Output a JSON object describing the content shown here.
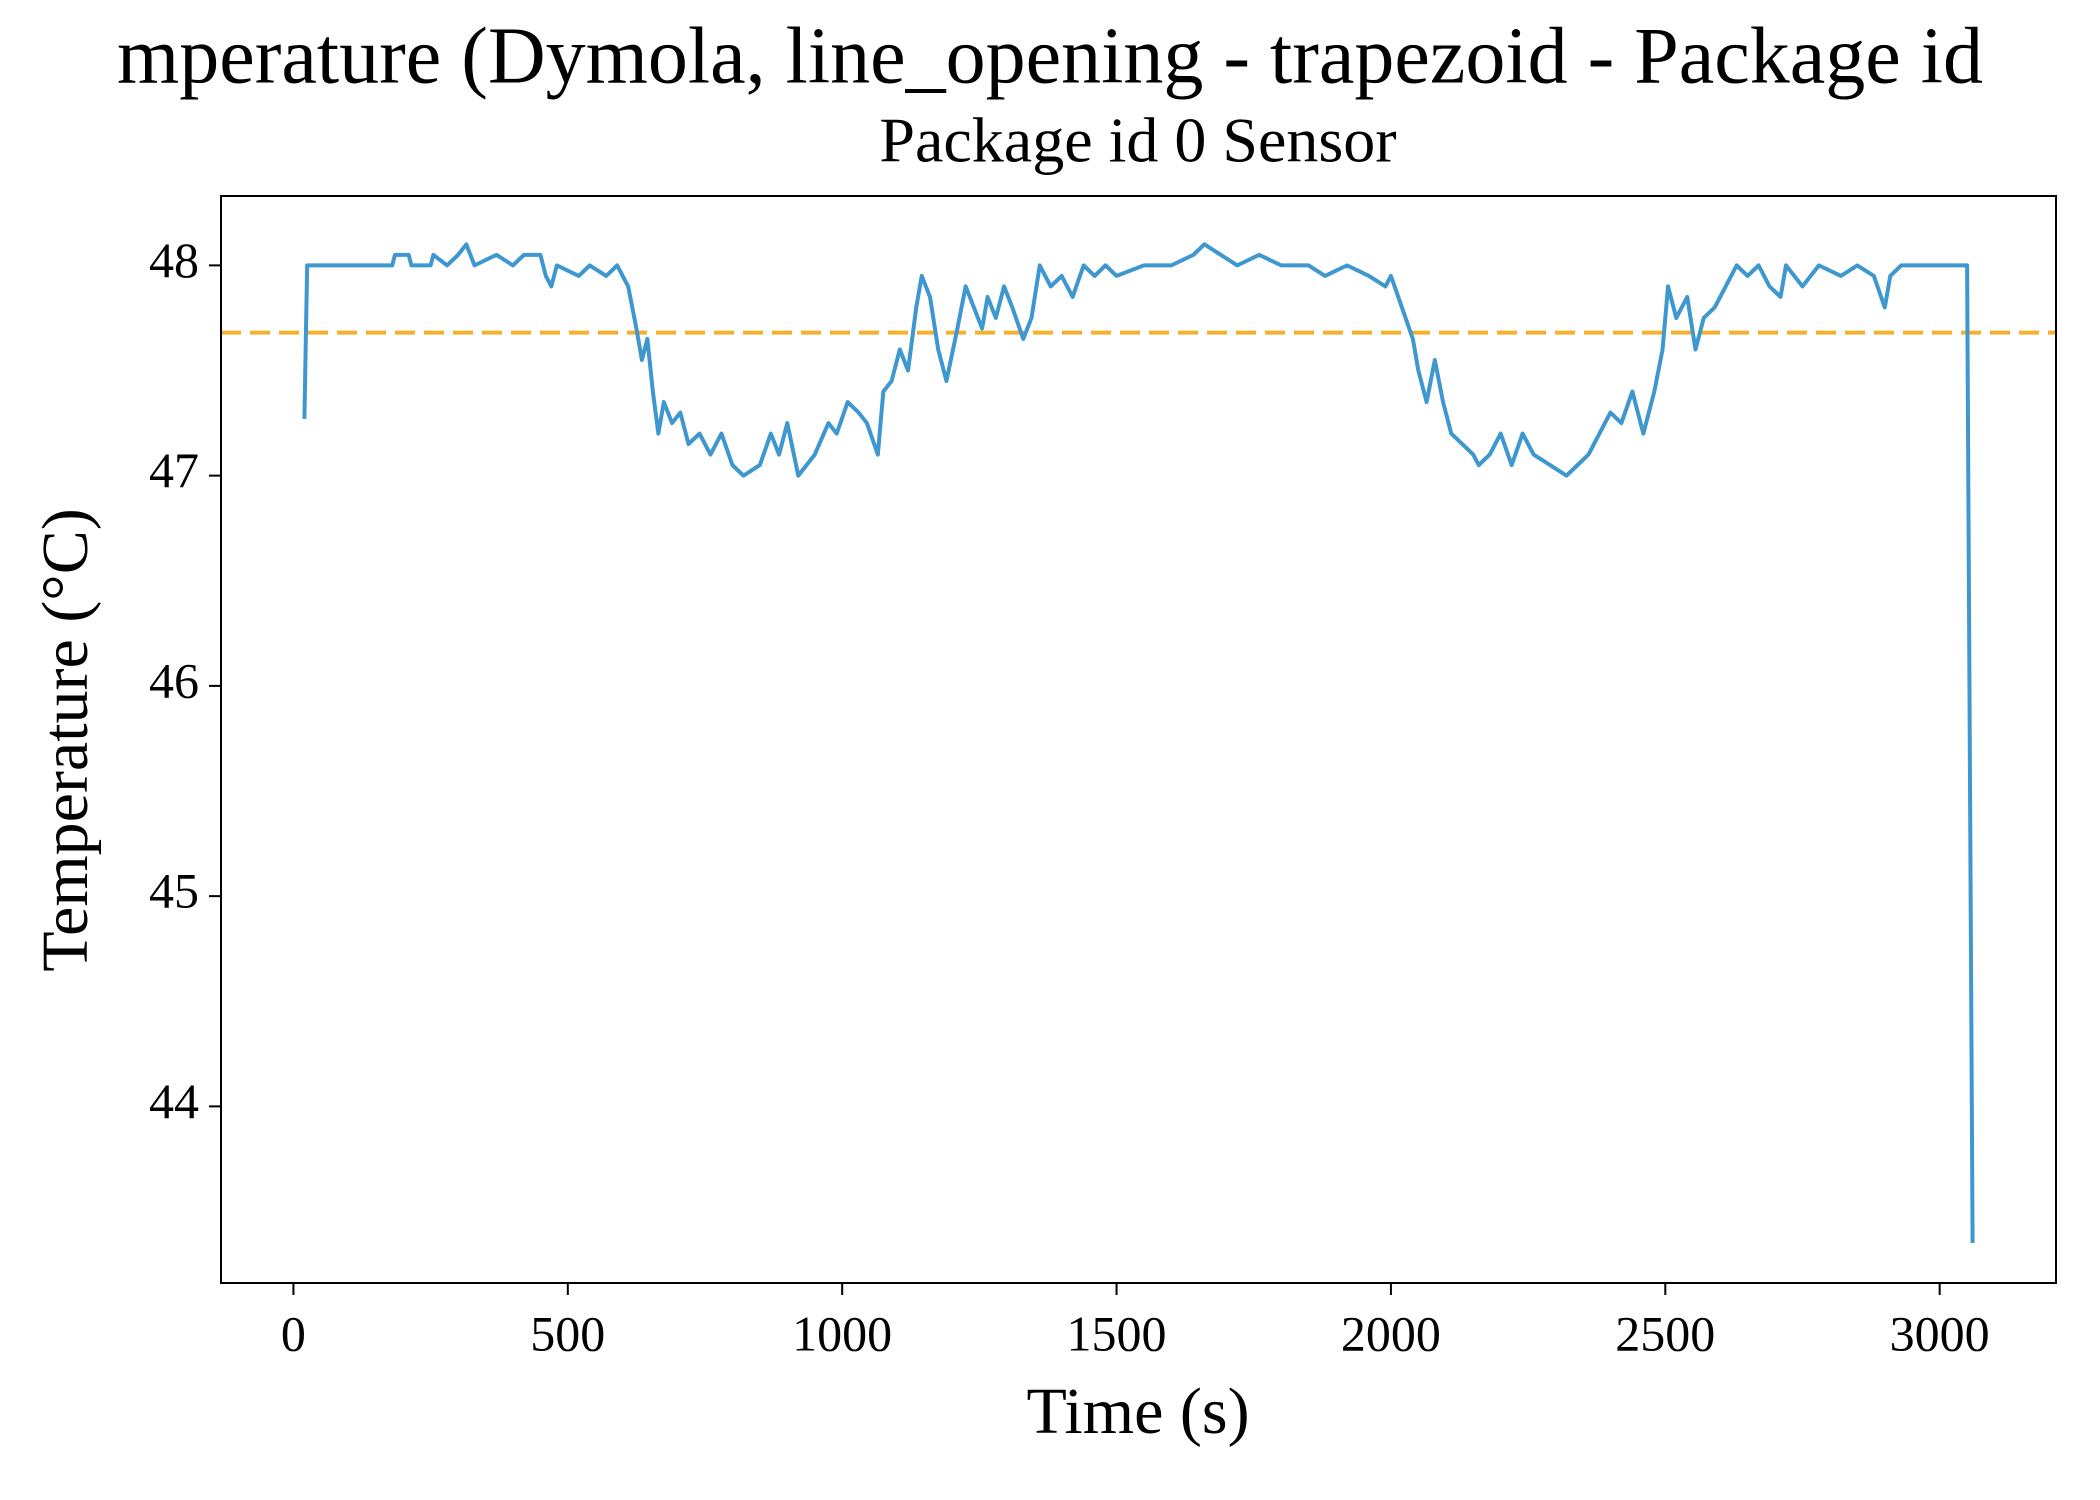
{
  "chart_data": {
    "type": "line",
    "title": "mperature (Dymola, line_opening - trapezoid - Package id",
    "subtitle": "Package id 0 Sensor",
    "x_label": "Time (s)",
    "y_label": "Temperature (°C)",
    "xlim": [
      -132,
      3212
    ],
    "ylim": [
      43.16,
      48.33
    ],
    "xticks": [
      0,
      500,
      1000,
      1500,
      2000,
      2500,
      3000
    ],
    "yticks": [
      44,
      45,
      46,
      47,
      48
    ],
    "x": [
      20,
      25,
      180,
      185,
      210,
      215,
      250,
      255,
      280,
      300,
      315,
      330,
      370,
      400,
      420,
      450,
      460,
      470,
      480,
      520,
      540,
      570,
      590,
      600,
      610,
      625,
      635,
      645,
      655,
      665,
      675,
      690,
      705,
      720,
      740,
      760,
      780,
      800,
      820,
      850,
      870,
      885,
      900,
      920,
      950,
      975,
      990,
      1010,
      1030,
      1045,
      1065,
      1075,
      1090,
      1105,
      1120,
      1135,
      1145,
      1160,
      1175,
      1190,
      1210,
      1225,
      1240,
      1255,
      1265,
      1280,
      1295,
      1310,
      1330,
      1345,
      1360,
      1380,
      1400,
      1420,
      1440,
      1460,
      1480,
      1500,
      1550,
      1600,
      1640,
      1660,
      1690,
      1720,
      1760,
      1800,
      1850,
      1880,
      1920,
      1960,
      1990,
      2000,
      2020,
      2040,
      2050,
      2065,
      2080,
      2095,
      2110,
      2130,
      2150,
      2160,
      2180,
      2200,
      2220,
      2240,
      2260,
      2290,
      2320,
      2340,
      2360,
      2380,
      2400,
      2420,
      2440,
      2460,
      2480,
      2495,
      2505,
      2520,
      2540,
      2555,
      2570,
      2590,
      2610,
      2630,
      2650,
      2670,
      2690,
      2710,
      2720,
      2750,
      2780,
      2820,
      2850,
      2880,
      2900,
      2910,
      2930,
      3050,
      3060
    ],
    "series": [
      {
        "color": "#3f97cf",
        "values": [
          47.27,
          48,
          48,
          48.05,
          48.05,
          48,
          48,
          48.05,
          48,
          48.05,
          48.1,
          48,
          48.05,
          48,
          48.05,
          48.05,
          47.95,
          47.9,
          48,
          47.95,
          48,
          47.95,
          48,
          47.95,
          47.9,
          47.7,
          47.55,
          47.65,
          47.4,
          47.2,
          47.35,
          47.25,
          47.3,
          47.15,
          47.2,
          47.1,
          47.2,
          47.05,
          47,
          47.05,
          47.2,
          47.1,
          47.25,
          47,
          47.1,
          47.25,
          47.2,
          47.35,
          47.3,
          47.25,
          47.1,
          47.4,
          47.45,
          47.6,
          47.5,
          47.8,
          47.95,
          47.85,
          47.6,
          47.45,
          47.7,
          47.9,
          47.8,
          47.7,
          47.85,
          47.75,
          47.9,
          47.8,
          47.65,
          47.75,
          48,
          47.9,
          47.95,
          47.85,
          48,
          47.95,
          48,
          47.95,
          48,
          48,
          48.05,
          48.1,
          48.05,
          48,
          48.05,
          48,
          48,
          47.95,
          48,
          47.95,
          47.9,
          47.95,
          47.8,
          47.65,
          47.5,
          47.35,
          47.55,
          47.35,
          47.2,
          47.15,
          47.1,
          47.05,
          47.1,
          47.2,
          47.05,
          47.2,
          47.1,
          47.05,
          47,
          47.05,
          47.1,
          47.2,
          47.3,
          47.25,
          47.4,
          47.2,
          47.4,
          47.6,
          47.9,
          47.75,
          47.85,
          47.6,
          47.75,
          47.8,
          47.9,
          48,
          47.95,
          48,
          47.9,
          47.85,
          48,
          47.9,
          48,
          47.95,
          48,
          47.95,
          47.8,
          47.95,
          48,
          48,
          43.35
        ]
      }
    ],
    "hlines": [
      {
        "value": 47.68,
        "color": "#f5b02e",
        "style": "dashed"
      }
    ]
  }
}
